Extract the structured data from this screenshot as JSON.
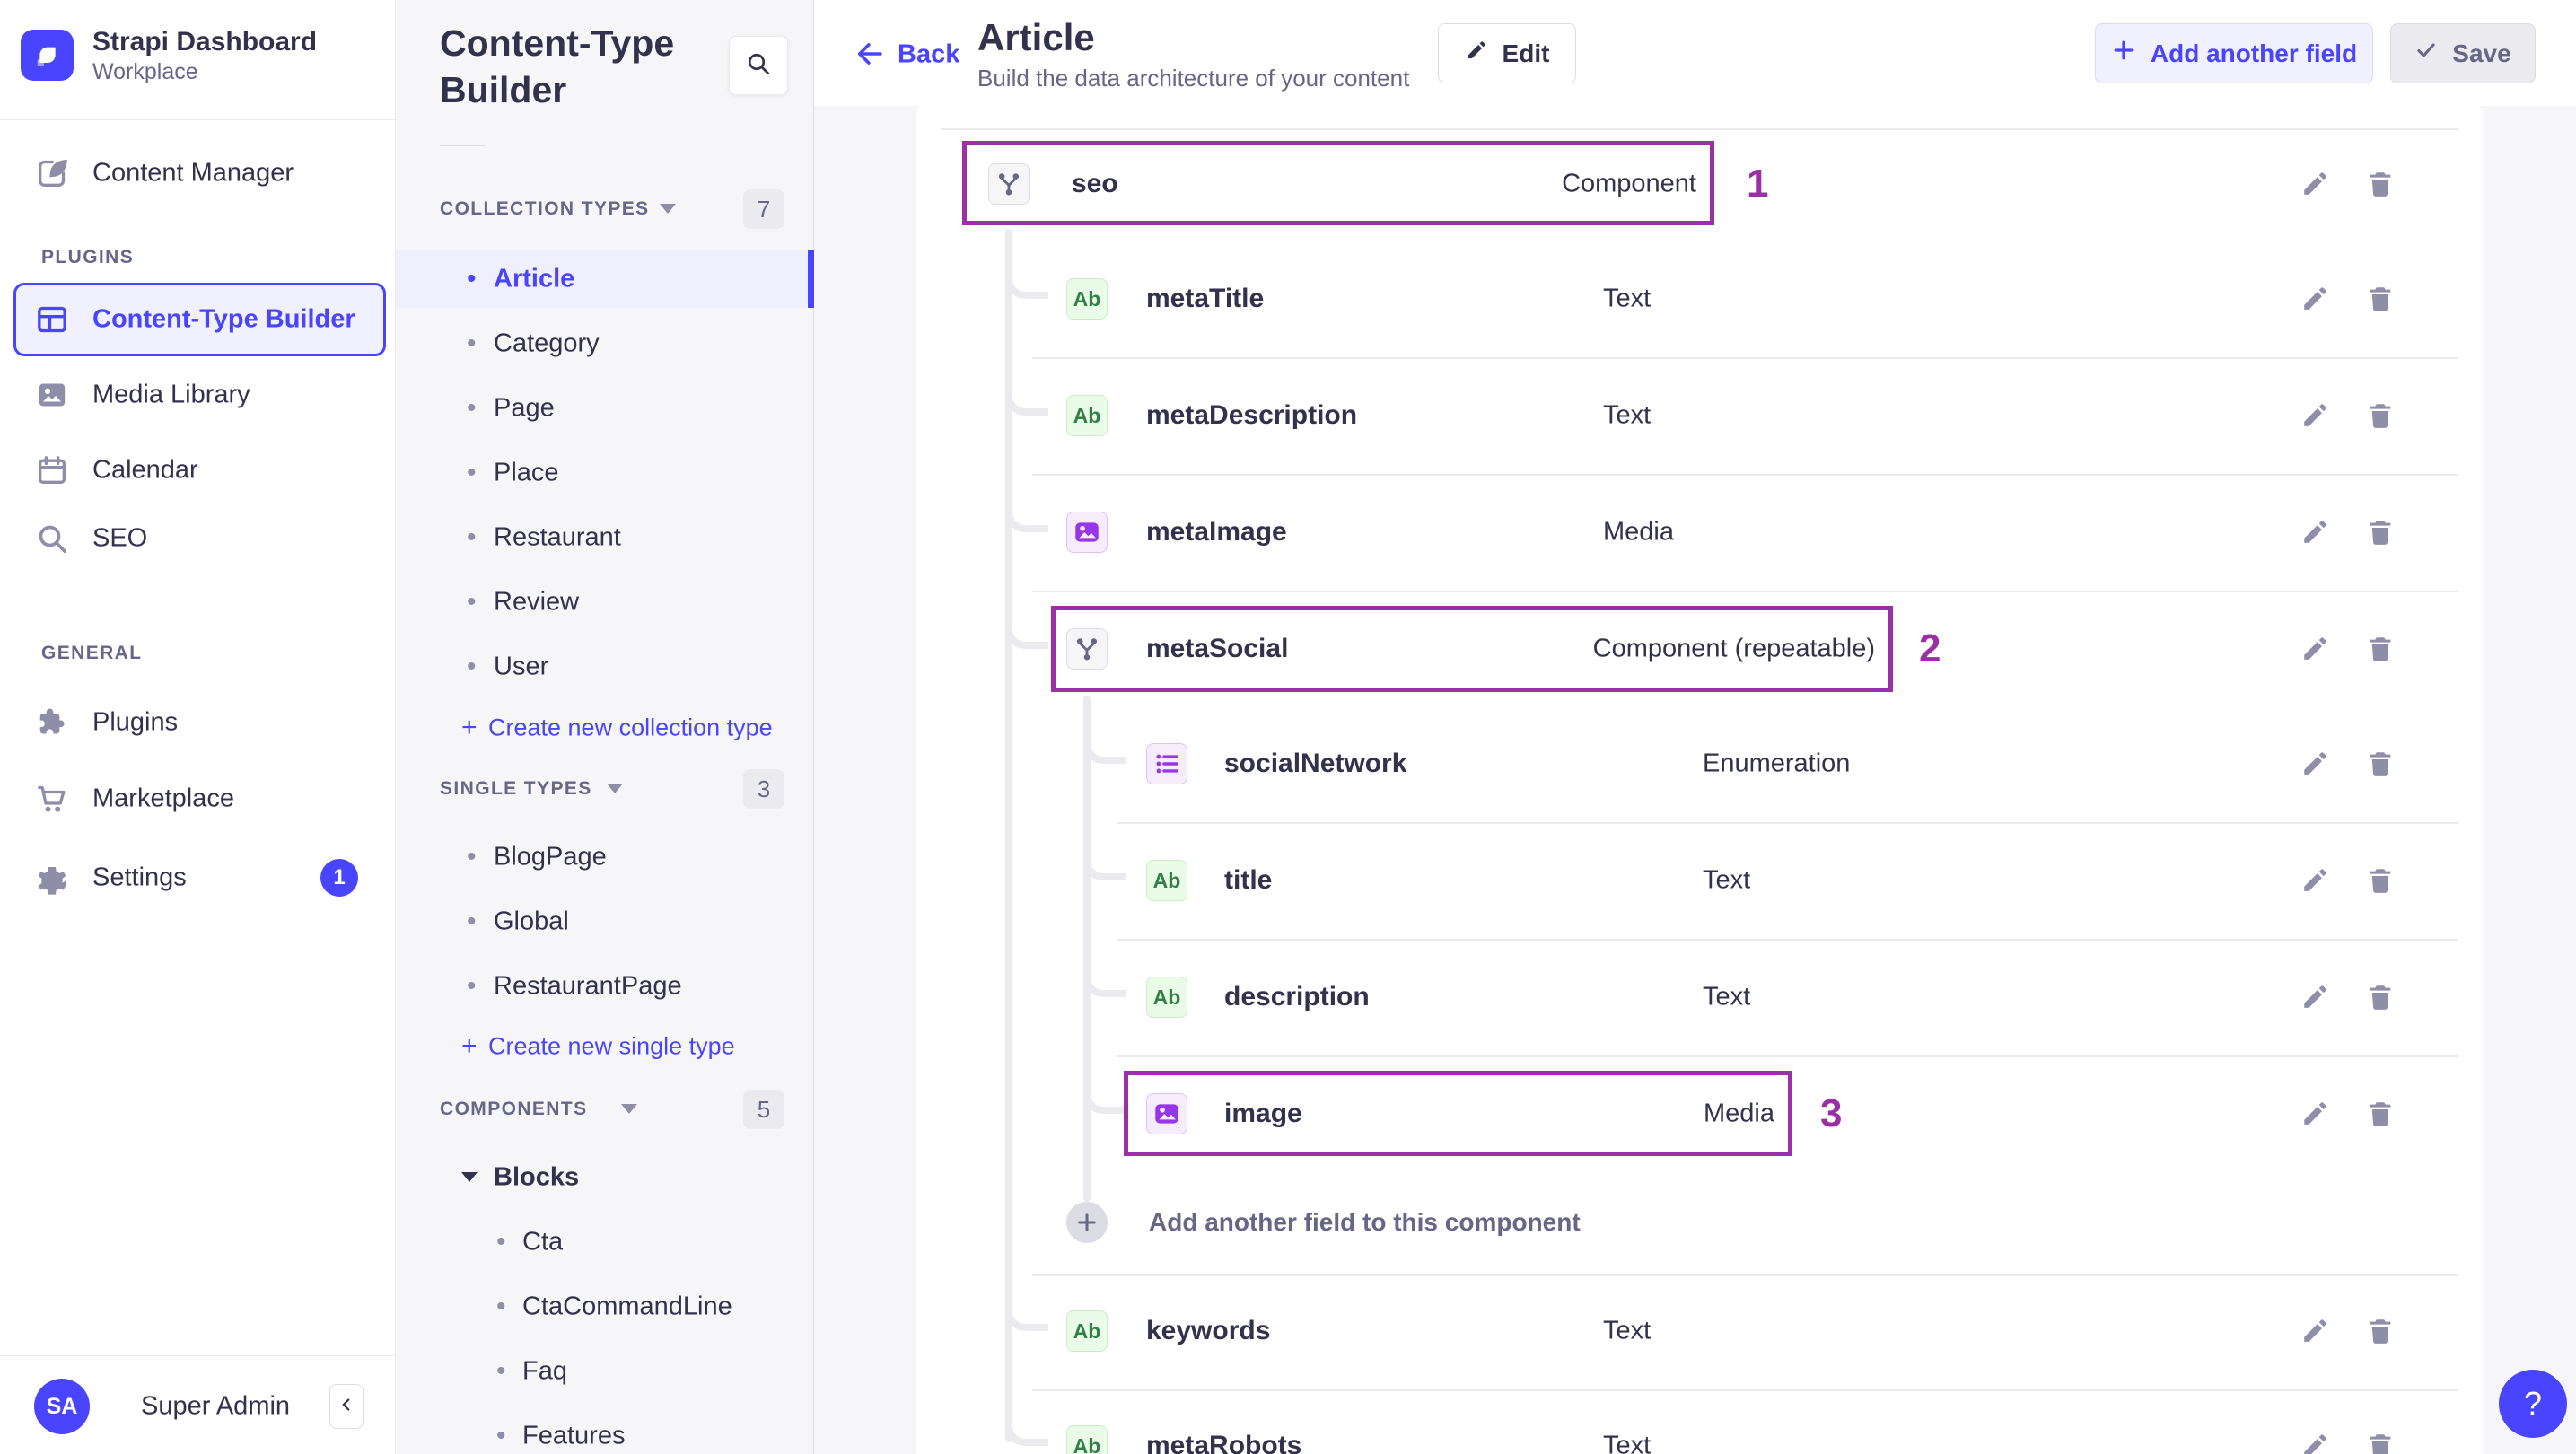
{
  "brand": {
    "app_title": "Strapi Dashboard",
    "workspace": "Workplace",
    "logo_icon": "strapi-logo-icon",
    "logo_color": "#4945FF"
  },
  "left_nav": {
    "top_items": [
      {
        "label": "Content Manager",
        "icon": "content-manager-icon"
      }
    ],
    "sections": [
      {
        "label": "PLUGINS",
        "items": [
          {
            "label": "Content-Type Builder",
            "icon": "content-type-builder-icon",
            "selected": true
          },
          {
            "label": "Media Library",
            "icon": "media-library-icon"
          },
          {
            "label": "Calendar",
            "icon": "calendar-icon"
          },
          {
            "label": "SEO",
            "icon": "seo-icon"
          }
        ]
      },
      {
        "label": "GENERAL",
        "items": [
          {
            "label": "Plugins",
            "icon": "plugins-icon"
          },
          {
            "label": "Marketplace",
            "icon": "marketplace-icon"
          },
          {
            "label": "Settings",
            "icon": "settings-icon",
            "badge": "1"
          }
        ]
      }
    ],
    "user": {
      "initials": "SA",
      "name": "Super Admin",
      "collapse_icon": "chevron-left-icon"
    }
  },
  "sidebar": {
    "title": "Content-Type Builder",
    "search_icon": "search-icon",
    "sections": [
      {
        "label": "COLLECTION TYPES",
        "count": "7",
        "items": [
          "Article",
          "Category",
          "Page",
          "Place",
          "Restaurant",
          "Review",
          "User"
        ],
        "selected_item": "Article",
        "action": "Create new collection type"
      },
      {
        "label": "SINGLE TYPES",
        "count": "3",
        "items": [
          "BlogPage",
          "Global",
          "RestaurantPage"
        ],
        "action": "Create new single type"
      },
      {
        "label": "COMPONENTS",
        "count": "5",
        "groups": [
          {
            "label": "Blocks",
            "items": [
              "Cta",
              "CtaCommandLine",
              "Faq",
              "Features"
            ]
          }
        ]
      }
    ]
  },
  "header": {
    "back_label": "Back",
    "back_icon": "back-arrow-icon",
    "title": "Article",
    "subtitle": "Build the data architecture of your content",
    "edit_label": "Edit",
    "edit_icon": "pencil-icon",
    "add_field_label": "Add another field",
    "add_icon": "plus-icon",
    "save_label": "Save",
    "save_icon": "check-icon",
    "save_disabled": true
  },
  "fields": {
    "rows": [
      {
        "name": "seo",
        "type": "Component",
        "icon": "component-icon",
        "annotation": "1"
      },
      {
        "name": "metaTitle",
        "type": "Text",
        "icon": "text-icon"
      },
      {
        "name": "metaDescription",
        "type": "Text",
        "icon": "text-icon"
      },
      {
        "name": "metaImage",
        "type": "Media",
        "icon": "media-icon"
      },
      {
        "name": "metaSocial",
        "type": "Component (repeatable)",
        "icon": "component-icon",
        "annotation": "2"
      },
      {
        "name": "socialNetwork",
        "type": "Enumeration",
        "icon": "enumeration-icon"
      },
      {
        "name": "title",
        "type": "Text",
        "icon": "text-icon"
      },
      {
        "name": "description",
        "type": "Text",
        "icon": "text-icon"
      },
      {
        "name": "image",
        "type": "Media",
        "icon": "media-icon",
        "annotation": "3"
      },
      {
        "name": "keywords",
        "type": "Text",
        "icon": "text-icon"
      },
      {
        "name": "metaRobots",
        "type": "Text",
        "icon": "text-icon"
      }
    ],
    "row_action_icons": [
      "pencil-icon",
      "trash-icon"
    ],
    "add_component_field_label": "Add another field to this component"
  },
  "help": {
    "label": "?",
    "icon": "question-icon"
  },
  "colors": {
    "primary": "#4945FF",
    "primary_light_bg": "#F0F0FF",
    "selected_item_bg": "#EFEFFE",
    "annotation_purple": "#9B2FA6",
    "text_dark": "#32324D",
    "text_gray": "#666687",
    "icon_gray": "#8E8EA9",
    "divider": "#EAEAEF",
    "page_bg": "#F6F6F9",
    "text_field_green": "#328048",
    "text_field_green_bg": "#EAFBE7",
    "media_purple": "#9736E8",
    "media_purple_bg": "#F6ECFC"
  }
}
